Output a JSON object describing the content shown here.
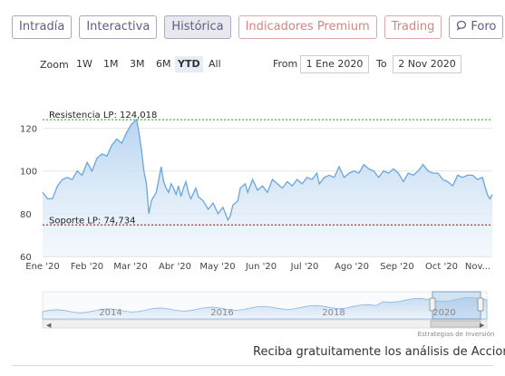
{
  "tabs": [
    {
      "label": "Intradía",
      "active": false
    },
    {
      "label": "Interactiva",
      "active": false
    },
    {
      "label": "Histórica",
      "active": true
    },
    {
      "label": "Indicadores Premium",
      "active": false
    },
    {
      "label": "Trading",
      "active": false
    },
    {
      "label": "Foro",
      "active": false,
      "icon": "chat-bubble-icon"
    }
  ],
  "zoom": {
    "label": "Zoom",
    "options": [
      "1W",
      "1M",
      "3M",
      "6M",
      "YTD",
      "All"
    ],
    "selected": "YTD"
  },
  "range": {
    "from_label": "From",
    "from_value": "1 Ene 2020",
    "to_label": "To",
    "to_value": "2 Nov 2020"
  },
  "chart_data": {
    "type": "area",
    "x_labels": [
      "Ene '20",
      "Feb '20",
      "Mar '20",
      "Abr '20",
      "May '20",
      "Jun '20",
      "Jul '20",
      "Ago '20",
      "Sep '20",
      "Oct '20",
      "Nov..."
    ],
    "y_ticks": [
      60,
      80,
      100,
      120
    ],
    "ylim": [
      60,
      130
    ],
    "grid": true,
    "series": [
      {
        "values": [
          [
            0,
            90
          ],
          [
            2,
            87
          ],
          [
            4,
            87
          ],
          [
            6,
            93
          ],
          [
            8,
            96
          ],
          [
            10,
            97
          ],
          [
            12,
            96
          ],
          [
            14,
            100
          ],
          [
            16,
            98
          ],
          [
            18,
            104
          ],
          [
            20,
            100
          ],
          [
            22,
            106
          ],
          [
            24,
            108
          ],
          [
            26,
            107
          ],
          [
            28,
            112
          ],
          [
            30,
            115
          ],
          [
            32,
            113
          ],
          [
            34,
            118
          ],
          [
            36,
            122
          ],
          [
            38,
            124
          ],
          [
            39,
            118
          ],
          [
            40,
            110
          ],
          [
            41,
            100
          ],
          [
            42,
            94
          ],
          [
            43,
            80
          ],
          [
            44,
            86
          ],
          [
            45,
            88
          ],
          [
            46,
            90
          ],
          [
            47,
            96
          ],
          [
            48,
            102
          ],
          [
            49,
            95
          ],
          [
            50,
            92
          ],
          [
            51,
            90
          ],
          [
            52,
            94
          ],
          [
            53,
            92
          ],
          [
            54,
            89
          ],
          [
            55,
            93
          ],
          [
            56,
            88
          ],
          [
            57,
            92
          ],
          [
            58,
            95
          ],
          [
            59,
            90
          ],
          [
            60,
            87
          ],
          [
            62,
            92
          ],
          [
            63,
            88
          ],
          [
            65,
            86
          ],
          [
            67,
            82
          ],
          [
            69,
            85
          ],
          [
            71,
            80
          ],
          [
            73,
            83
          ],
          [
            75,
            77
          ],
          [
            76,
            79
          ],
          [
            77,
            84
          ],
          [
            79,
            86
          ],
          [
            80,
            92
          ],
          [
            82,
            94
          ],
          [
            83,
            90
          ],
          [
            85,
            96
          ],
          [
            87,
            91
          ],
          [
            89,
            93
          ],
          [
            91,
            90
          ],
          [
            93,
            96
          ],
          [
            95,
            94
          ],
          [
            97,
            92
          ],
          [
            99,
            95
          ],
          [
            101,
            93
          ],
          [
            103,
            96
          ],
          [
            105,
            94
          ],
          [
            107,
            97
          ],
          [
            109,
            96
          ],
          [
            111,
            99
          ],
          [
            112,
            94
          ],
          [
            114,
            97
          ],
          [
            116,
            98
          ],
          [
            118,
            97
          ],
          [
            120,
            102
          ],
          [
            122,
            97
          ],
          [
            124,
            99
          ],
          [
            126,
            100
          ],
          [
            128,
            99
          ],
          [
            130,
            103
          ],
          [
            132,
            101
          ],
          [
            134,
            100
          ],
          [
            136,
            97
          ],
          [
            138,
            100
          ],
          [
            140,
            99
          ],
          [
            142,
            101
          ],
          [
            144,
            99
          ],
          [
            146,
            95
          ],
          [
            148,
            99
          ],
          [
            150,
            98
          ],
          [
            152,
            100
          ],
          [
            154,
            103
          ],
          [
            156,
            100
          ],
          [
            158,
            99
          ],
          [
            160,
            99
          ],
          [
            162,
            96
          ],
          [
            164,
            95
          ],
          [
            166,
            93
          ],
          [
            168,
            98
          ],
          [
            170,
            97
          ],
          [
            172,
            98
          ],
          [
            174,
            98
          ],
          [
            176,
            96
          ],
          [
            178,
            97
          ],
          [
            180,
            89
          ],
          [
            181,
            87
          ],
          [
            182,
            89
          ]
        ]
      }
    ],
    "annotations": [
      {
        "label": "Resistencia LP: 124,018",
        "value": 124.018,
        "color": "#4caf50"
      },
      {
        "label": "Soporte LP: 74,734",
        "value": 74.734,
        "color": "#c62828"
      }
    ]
  },
  "navigator": {
    "year_labels": [
      "2014",
      "2016",
      "2018",
      "2020"
    ],
    "credit": "Estrategias de Inversión"
  },
  "footer": {
    "text": "Reciba gratuitamente los análisis de Acciona"
  },
  "colors": {
    "line": "#6aa6dd",
    "area_top": "#b4d2f0",
    "area_bottom": "#edf4fb",
    "tab_border": "#a8a9c3",
    "premium": "#d6847f"
  }
}
